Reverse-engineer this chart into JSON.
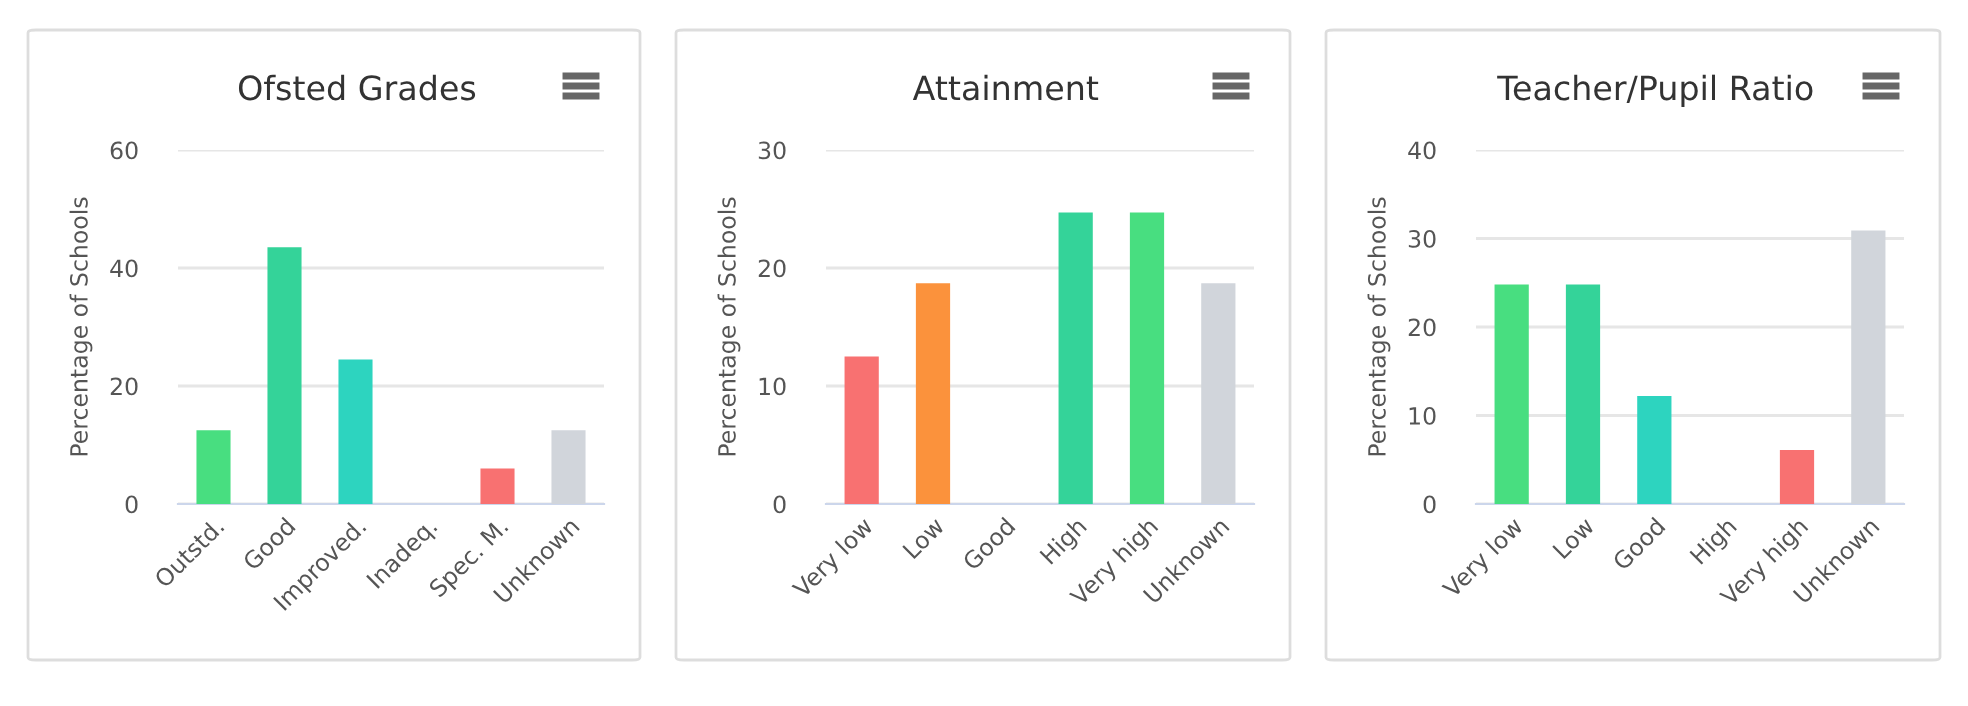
{
  "chart_data": [
    {
      "type": "bar",
      "title": "Ofsted Grades",
      "ylabel": "Percentage of Schools",
      "categories": [
        "Outstd.",
        "Good",
        "Improved.",
        "Inadeq.",
        "Spec. M.",
        "Unknown"
      ],
      "values": [
        12.5,
        43.5,
        24.5,
        0,
        6,
        12.5
      ],
      "colors": [
        "#48de80",
        "#34d399",
        "#2dd4bf",
        "#f87171",
        "#f87171",
        "#d1d5db"
      ],
      "ylim": [
        0,
        60
      ],
      "yticks": [
        0,
        20,
        40,
        60
      ],
      "grid": "y",
      "legend": false
    },
    {
      "type": "bar",
      "title": "Attainment",
      "ylabel": "Percentage of Schools",
      "categories": [
        "Very low",
        "Low",
        "Good",
        "High",
        "Very high",
        "Unknown"
      ],
      "values": [
        12.5,
        18.7,
        0,
        24.7,
        24.7,
        18.7
      ],
      "colors": [
        "#f87171",
        "#fb923c",
        "#34d399",
        "#34d399",
        "#48de80",
        "#d1d5db"
      ],
      "ylim": [
        0,
        30
      ],
      "yticks": [
        0,
        10,
        20,
        30
      ],
      "grid": "y",
      "legend": false
    },
    {
      "type": "bar",
      "title": "Teacher/Pupil Ratio",
      "ylabel": "Percentage of Schools",
      "categories": [
        "Very low",
        "Low",
        "Good",
        "High",
        "Very high",
        "Unknown"
      ],
      "values": [
        24.8,
        24.8,
        12.2,
        0,
        6.1,
        30.9
      ],
      "colors": [
        "#48de80",
        "#34d399",
        "#2dd4bf",
        "#34d399",
        "#f87171",
        "#d1d5db"
      ],
      "ylim": [
        0,
        40
      ],
      "yticks": [
        0,
        10,
        20,
        30,
        40
      ],
      "grid": "y",
      "legend": false
    }
  ]
}
